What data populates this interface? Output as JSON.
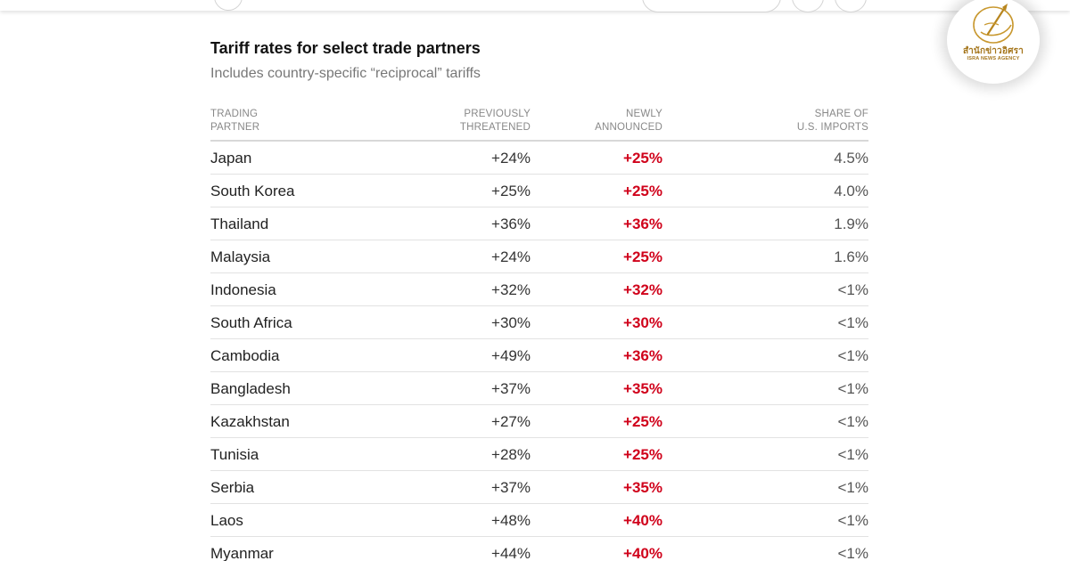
{
  "colors": {
    "accent_red": "#d0021b",
    "logo_gold": "#a5761c"
  },
  "logo": {
    "name_thai": "สำนักข่าวอิศรา",
    "name_english": "ISRA NEWS AGENCY"
  },
  "chart_data": {
    "type": "table",
    "title": "Tariff rates for select trade partners",
    "subtitle": "Includes country-specific “reciprocal” tariffs",
    "columns": [
      "TRADING PARTNER",
      "PREVIOUSLY THREATENED",
      "NEWLY ANNOUNCED",
      "SHARE OF U.S. IMPORTS"
    ],
    "rows": [
      [
        "Japan",
        "+24%",
        "+25%",
        "4.5%"
      ],
      [
        "South Korea",
        "+25%",
        "+25%",
        "4.0%"
      ],
      [
        "Thailand",
        "+36%",
        "+36%",
        "1.9%"
      ],
      [
        "Malaysia",
        "+24%",
        "+25%",
        "1.6%"
      ],
      [
        "Indonesia",
        "+32%",
        "+32%",
        "<1%"
      ],
      [
        "South Africa",
        "+30%",
        "+30%",
        "<1%"
      ],
      [
        "Cambodia",
        "+49%",
        "+36%",
        "<1%"
      ],
      [
        "Bangladesh",
        "+37%",
        "+35%",
        "<1%"
      ],
      [
        "Kazakhstan",
        "+27%",
        "+25%",
        "<1%"
      ],
      [
        "Tunisia",
        "+28%",
        "+25%",
        "<1%"
      ],
      [
        "Serbia",
        "+37%",
        "+35%",
        "<1%"
      ],
      [
        "Laos",
        "+48%",
        "+40%",
        "<1%"
      ],
      [
        "Myanmar",
        "+44%",
        "+40%",
        "<1%"
      ]
    ]
  }
}
